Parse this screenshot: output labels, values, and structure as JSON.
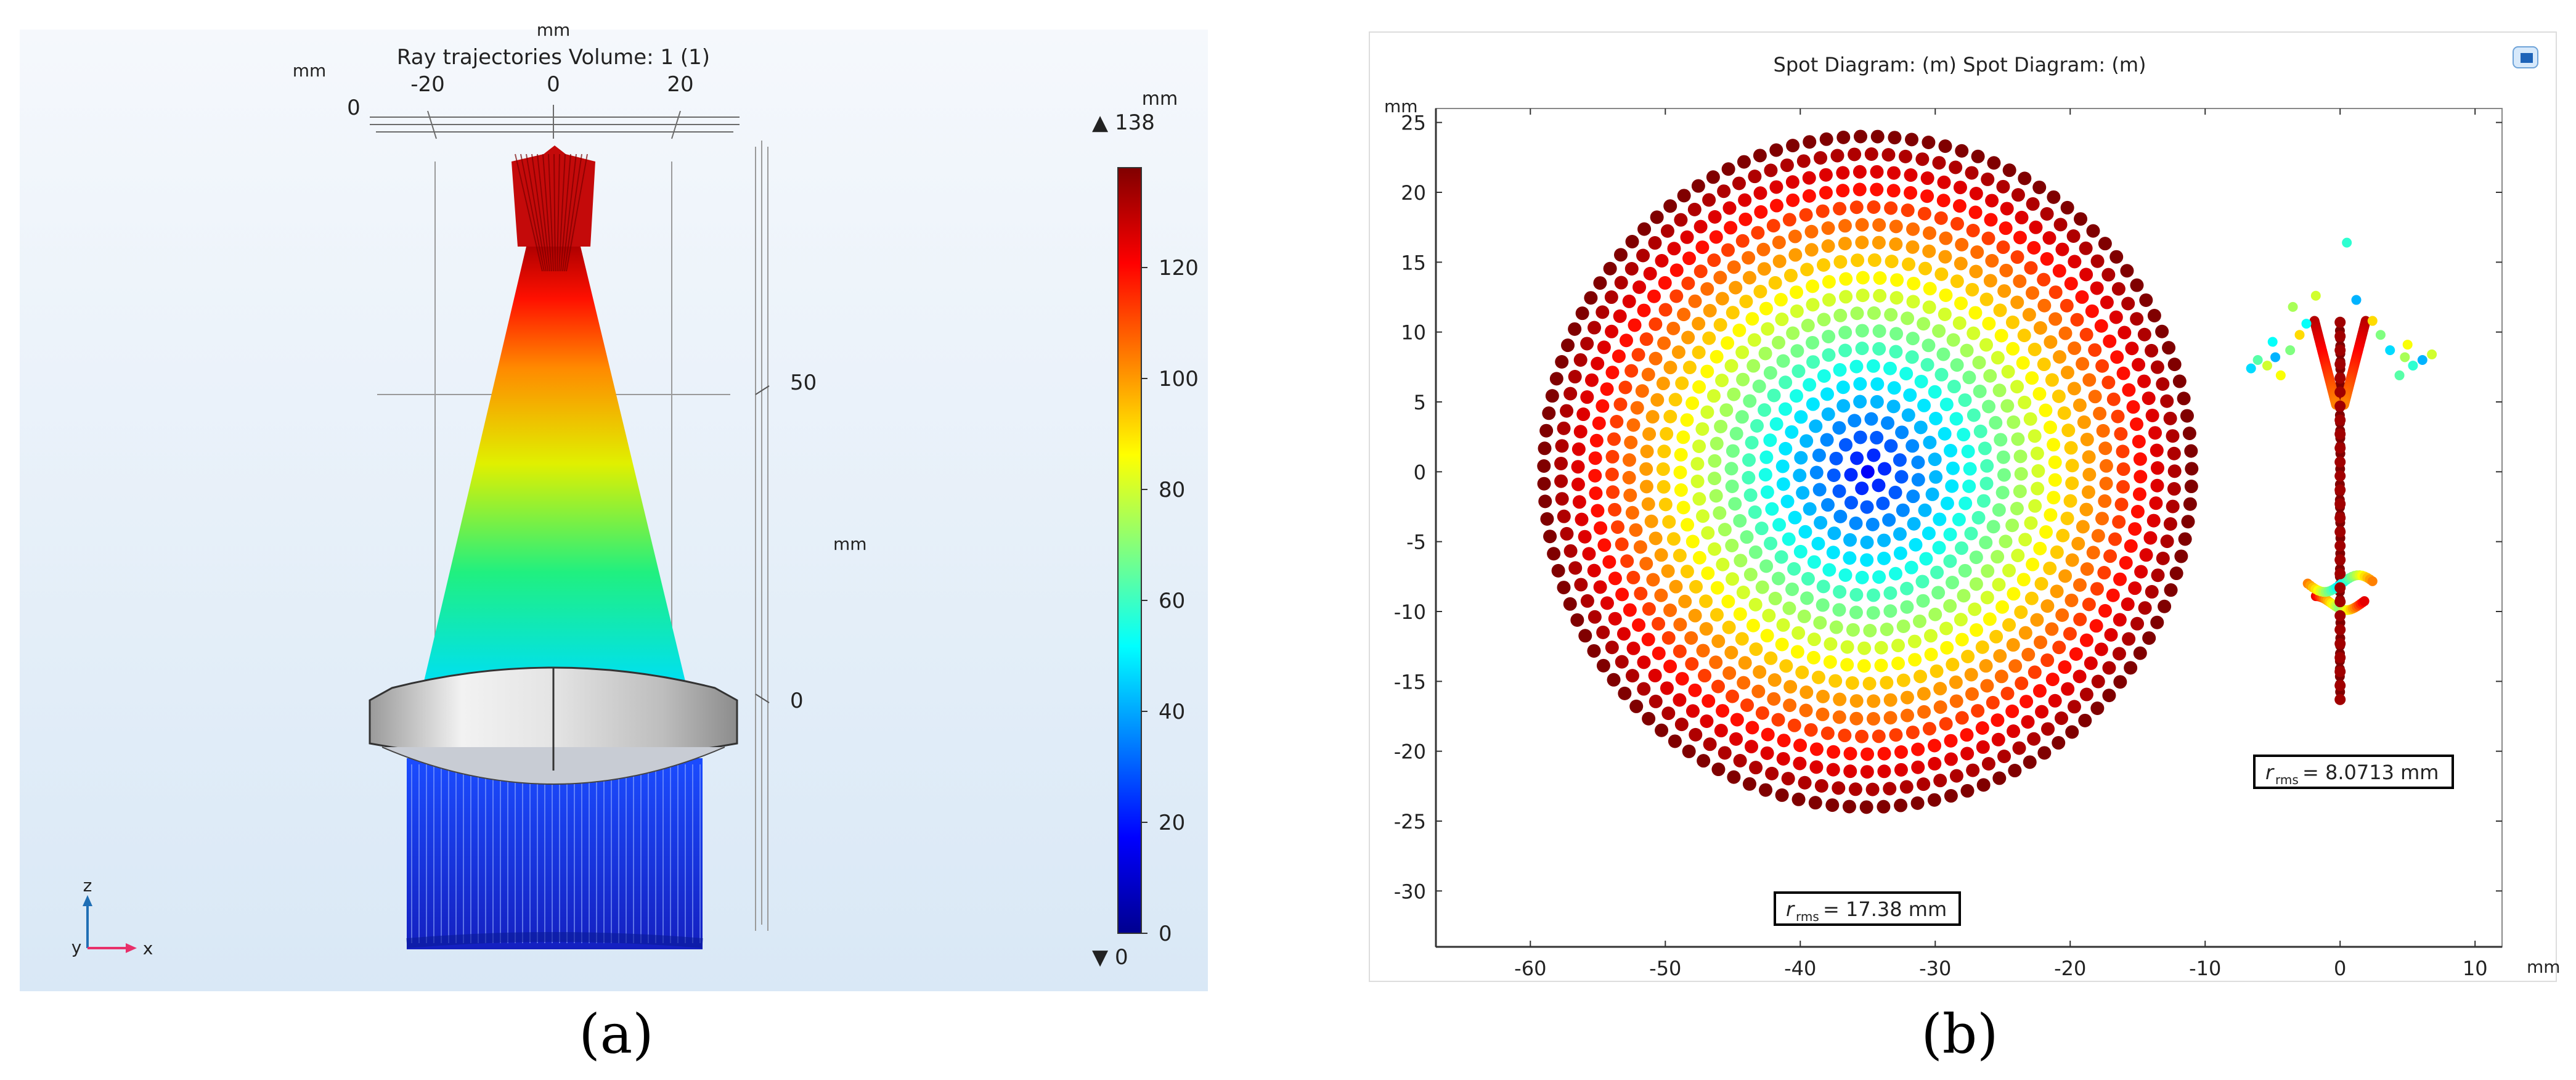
{
  "panel_a": {
    "title": "Ray trajectories  Volume: 1 (1)",
    "unit_top": "mm",
    "unit_left": "mm",
    "unit_right": "mm",
    "unit_colorbar": "mm",
    "x_ticks": [
      "-20",
      "0",
      "20"
    ],
    "top_left_tick": "0",
    "z_ticks": [
      "50",
      "0"
    ],
    "colorbar_max_label": "▲ 138",
    "colorbar_min_label": "▼ 0",
    "colorbar_ticks": [
      "120",
      "100",
      "80",
      "60",
      "40",
      "20",
      "0"
    ],
    "axis_z": "z",
    "axis_y": "y",
    "axis_x": "x",
    "caption": "(a)"
  },
  "panel_b": {
    "title": "Spot Diagram: (m)  Spot Diagram: (m)",
    "y_unit": "mm",
    "x_unit": "mm",
    "rms_label_1": "= 17.38 mm",
    "rms_label_2": "= 8.0713 mm",
    "rms_symbol": "r",
    "rms_sub": "rms",
    "caption": "(b)"
  },
  "chart_data": [
    {
      "type": "line",
      "title": "Ray trajectories  Volume: 1 (1)",
      "xlabel": "mm",
      "ylabel": "mm",
      "x_ticks": [
        -20,
        0,
        20
      ],
      "z_ticks": [
        0,
        50
      ],
      "colorbar": {
        "min": 0,
        "max": 138,
        "ticks": [
          0,
          20,
          40,
          60,
          80,
          100,
          120
        ],
        "unit": "mm"
      },
      "series": []
    },
    {
      "type": "scatter",
      "title": "Spot Diagram: (m)  Spot Diagram: (m)",
      "xlabel": "mm",
      "ylabel": "mm",
      "xlim": [
        -67,
        12
      ],
      "ylim": [
        -34,
        26
      ],
      "x_ticks": [
        -60,
        -50,
        -40,
        -30,
        -20,
        -10,
        0,
        10
      ],
      "y_ticks": [
        25,
        20,
        15,
        10,
        5,
        0,
        -5,
        -10,
        -15,
        -20,
        -25,
        -30
      ],
      "grid": false,
      "spots": [
        {
          "center": [
            -35,
            0
          ],
          "radius": 24,
          "r_rms": 17.38
        },
        {
          "center": [
            0,
            0
          ],
          "r_rms": 8.0713,
          "extent_x": [
            -7,
            7
          ],
          "extent_y": [
            -16.5,
            16.5
          ]
        }
      ]
    }
  ]
}
